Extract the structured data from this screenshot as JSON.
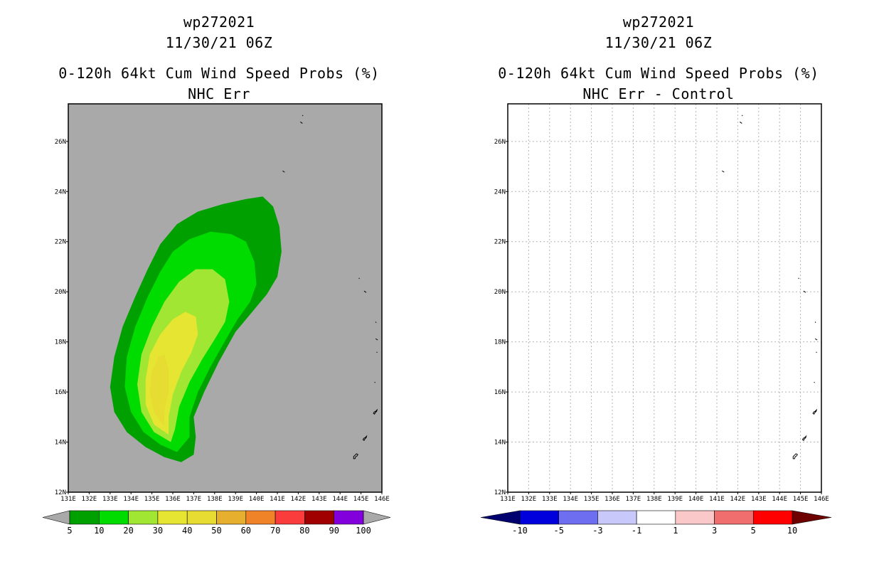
{
  "chart_data": [
    {
      "type": "heatmap",
      "title_lines": [
        "wp272021",
        "11/30/21 06Z",
        "0-120h 64kt Cum Wind Speed Probs (%)",
        "NHC Err"
      ],
      "background_color": "#a9a9a9",
      "grid": false,
      "x_ticks": [
        "131E",
        "132E",
        "133E",
        "134E",
        "135E",
        "136E",
        "137E",
        "138E",
        "139E",
        "140E",
        "141E",
        "142E",
        "143E",
        "144E",
        "145E",
        "146E"
      ],
      "y_ticks": [
        "12N",
        "14N",
        "16N",
        "18N",
        "20N",
        "22N",
        "24N",
        "26N"
      ],
      "xlim": [
        131,
        146
      ],
      "ylim": [
        12,
        27.5
      ],
      "colorbar": {
        "labels": [
          "5",
          "10",
          "20",
          "30",
          "40",
          "50",
          "60",
          "70",
          "80",
          "90",
          "100"
        ],
        "colors": [
          "#00a000",
          "#00dc00",
          "#a0e632",
          "#e6e632",
          "#e6dc32",
          "#e6af2d",
          "#f08228",
          "#fa3c3c",
          "#a00000",
          "#8200dc"
        ],
        "extend_colors": [
          "#a9a9a9",
          "#a9a9a9"
        ]
      },
      "contours": [
        {
          "level": "5-10",
          "color": "#00a000",
          "points": [
            [
              136.4,
              13.2
            ],
            [
              135.6,
              13.4
            ],
            [
              134.7,
              13.8
            ],
            [
              133.8,
              14.4
            ],
            [
              133.2,
              15.2
            ],
            [
              133.0,
              16.2
            ],
            [
              133.2,
              17.4
            ],
            [
              133.6,
              18.6
            ],
            [
              134.2,
              19.8
            ],
            [
              134.8,
              20.9
            ],
            [
              135.4,
              21.9
            ],
            [
              136.2,
              22.7
            ],
            [
              137.2,
              23.2
            ],
            [
              138.4,
              23.5
            ],
            [
              139.5,
              23.7
            ],
            [
              140.3,
              23.8
            ],
            [
              140.8,
              23.4
            ],
            [
              141.1,
              22.6
            ],
            [
              141.2,
              21.6
            ],
            [
              141.0,
              20.6
            ],
            [
              140.5,
              19.9
            ],
            [
              139.9,
              19.3
            ],
            [
              139.0,
              18.4
            ],
            [
              138.2,
              17.2
            ],
            [
              137.5,
              16.0
            ],
            [
              137.0,
              15.0
            ],
            [
              137.1,
              14.2
            ],
            [
              137.0,
              13.5
            ]
          ]
        },
        {
          "level": "10-20",
          "color": "#00dc00",
          "points": [
            [
              136.2,
              13.6
            ],
            [
              135.4,
              13.9
            ],
            [
              134.6,
              14.4
            ],
            [
              134.0,
              15.2
            ],
            [
              133.7,
              16.2
            ],
            [
              133.8,
              17.4
            ],
            [
              134.2,
              18.6
            ],
            [
              134.8,
              19.8
            ],
            [
              135.4,
              20.8
            ],
            [
              136.0,
              21.6
            ],
            [
              136.8,
              22.1
            ],
            [
              137.8,
              22.4
            ],
            [
              138.8,
              22.3
            ],
            [
              139.5,
              22.0
            ],
            [
              139.9,
              21.2
            ],
            [
              140.0,
              20.3
            ],
            [
              139.7,
              19.6
            ],
            [
              139.1,
              18.9
            ],
            [
              138.4,
              17.9
            ],
            [
              137.8,
              17.0
            ],
            [
              137.2,
              16.0
            ],
            [
              136.8,
              15.0
            ],
            [
              136.8,
              14.2
            ]
          ]
        },
        {
          "level": "20-30",
          "color": "#a0e632",
          "points": [
            [
              135.9,
              14.0
            ],
            [
              135.1,
              14.4
            ],
            [
              134.5,
              15.2
            ],
            [
              134.3,
              16.3
            ],
            [
              134.5,
              17.5
            ],
            [
              135.0,
              18.6
            ],
            [
              135.6,
              19.6
            ],
            [
              136.3,
              20.4
            ],
            [
              137.1,
              20.9
            ],
            [
              137.9,
              20.9
            ],
            [
              138.5,
              20.5
            ],
            [
              138.7,
              19.6
            ],
            [
              138.5,
              18.8
            ],
            [
              138.0,
              18.1
            ],
            [
              137.4,
              17.3
            ],
            [
              136.8,
              16.4
            ],
            [
              136.3,
              15.4
            ],
            [
              136.1,
              14.5
            ]
          ]
        },
        {
          "level": "30-40",
          "color": "#e6e632",
          "points": [
            [
              135.8,
              14.3
            ],
            [
              135.1,
              14.7
            ],
            [
              134.7,
              15.5
            ],
            [
              134.7,
              16.5
            ],
            [
              134.9,
              17.5
            ],
            [
              135.4,
              18.3
            ],
            [
              136.0,
              18.9
            ],
            [
              136.6,
              19.2
            ],
            [
              137.1,
              19.0
            ],
            [
              137.2,
              18.3
            ],
            [
              136.9,
              17.6
            ],
            [
              136.4,
              16.8
            ],
            [
              136.0,
              15.9
            ],
            [
              135.8,
              15.0
            ]
          ]
        },
        {
          "level": "40-50",
          "color": "#e6dc32",
          "points": [
            [
              135.6,
              14.6
            ],
            [
              135.1,
              15.2
            ],
            [
              134.9,
              16.0
            ],
            [
              135.0,
              16.8
            ],
            [
              135.3,
              17.4
            ],
            [
              135.6,
              17.5
            ],
            [
              135.8,
              16.9
            ],
            [
              135.8,
              16.0
            ],
            [
              135.6,
              15.3
            ]
          ]
        }
      ],
      "coast_marks": [
        {
          "kind": "dot",
          "lon": 142.2,
          "lat": 27.05
        },
        {
          "kind": "dash",
          "lon": 142.15,
          "lat": 26.75
        },
        {
          "kind": "dash",
          "lon": 141.3,
          "lat": 24.8
        },
        {
          "kind": "dot",
          "lon": 144.9,
          "lat": 20.55
        },
        {
          "kind": "dash",
          "lon": 145.2,
          "lat": 20.0
        },
        {
          "kind": "dot",
          "lon": 145.7,
          "lat": 18.8
        },
        {
          "kind": "dash",
          "lon": 145.75,
          "lat": 18.1
        },
        {
          "kind": "dot",
          "lon": 145.75,
          "lat": 17.6
        },
        {
          "kind": "dot",
          "lon": 145.65,
          "lat": 16.4
        },
        {
          "kind": "island",
          "lon": 145.7,
          "lat": 15.2
        },
        {
          "kind": "island",
          "lon": 145.2,
          "lat": 14.15
        },
        {
          "kind": "guam",
          "lon": 144.75,
          "lat": 13.45
        }
      ]
    },
    {
      "type": "heatmap",
      "title_lines": [
        "wp272021",
        "11/30/21 06Z",
        "0-120h 64kt Cum Wind Speed Probs (%)",
        "NHC Err - Control"
      ],
      "background_color": "#ffffff",
      "grid": true,
      "x_ticks": [
        "131E",
        "132E",
        "133E",
        "134E",
        "135E",
        "136E",
        "137E",
        "138E",
        "139E",
        "140E",
        "141E",
        "142E",
        "143E",
        "144E",
        "145E",
        "146E"
      ],
      "y_ticks": [
        "12N",
        "14N",
        "16N",
        "18N",
        "20N",
        "22N",
        "24N",
        "26N"
      ],
      "xlim": [
        131,
        146
      ],
      "ylim": [
        12,
        27.5
      ],
      "colorbar": {
        "labels": [
          "-10",
          "-5",
          "-3",
          "-1",
          "1",
          "3",
          "5",
          "10"
        ],
        "colors": [
          "#0000dc",
          "#6e6ef0",
          "#c8c8fa",
          "#ffffff",
          "#fac8c8",
          "#f06e6e",
          "#ff0000"
        ],
        "extend_colors": [
          "#00006e",
          "#6e0000"
        ]
      },
      "contours": [],
      "coast_marks": [
        {
          "kind": "dot",
          "lon": 142.2,
          "lat": 27.05
        },
        {
          "kind": "dash",
          "lon": 142.15,
          "lat": 26.75
        },
        {
          "kind": "dash",
          "lon": 141.3,
          "lat": 24.8
        },
        {
          "kind": "dot",
          "lon": 144.9,
          "lat": 20.55
        },
        {
          "kind": "dash",
          "lon": 145.2,
          "lat": 20.0
        },
        {
          "kind": "dot",
          "lon": 145.7,
          "lat": 18.8
        },
        {
          "kind": "dash",
          "lon": 145.75,
          "lat": 18.1
        },
        {
          "kind": "dot",
          "lon": 145.75,
          "lat": 17.6
        },
        {
          "kind": "dot",
          "lon": 145.65,
          "lat": 16.4
        },
        {
          "kind": "island",
          "lon": 145.7,
          "lat": 15.2
        },
        {
          "kind": "island",
          "lon": 145.2,
          "lat": 14.15
        },
        {
          "kind": "guam",
          "lon": 144.75,
          "lat": 13.45
        }
      ]
    }
  ]
}
